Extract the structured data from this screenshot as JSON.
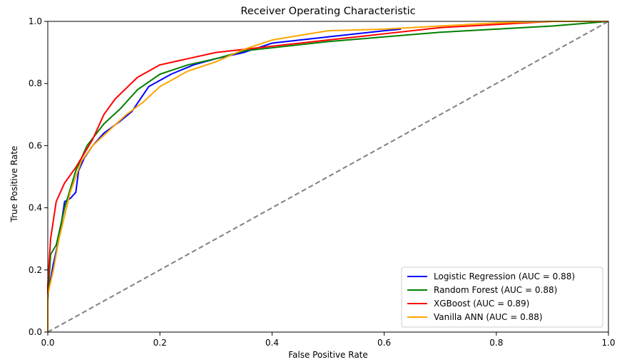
{
  "chart_data": {
    "type": "line",
    "title": "Receiver Operating Characteristic",
    "xlabel": "False Positive Rate",
    "ylabel": "True Positive Rate",
    "xlim": [
      0.0,
      1.0
    ],
    "ylim": [
      0.0,
      1.0
    ],
    "xticks": [
      "0.0",
      "0.2",
      "0.4",
      "0.6",
      "0.8",
      "1.0"
    ],
    "yticks": [
      "0.0",
      "0.2",
      "0.4",
      "0.6",
      "0.8",
      "1.0"
    ],
    "grid": false,
    "legend_position": "lower-right",
    "series": [
      {
        "name": "Logistic Regression (AUC = 0.88)",
        "color": "#0000ff",
        "x": [
          0.0,
          0.0,
          0.005,
          0.01,
          0.02,
          0.03,
          0.04,
          0.05,
          0.055,
          0.065,
          0.08,
          0.1,
          0.13,
          0.15,
          0.18,
          0.22,
          0.26,
          0.3,
          0.35,
          0.4,
          0.5,
          0.6,
          0.63
        ],
        "y": [
          0.0,
          0.12,
          0.17,
          0.22,
          0.3,
          0.42,
          0.43,
          0.45,
          0.52,
          0.56,
          0.6,
          0.64,
          0.68,
          0.71,
          0.79,
          0.83,
          0.86,
          0.88,
          0.9,
          0.93,
          0.95,
          0.97,
          0.975
        ]
      },
      {
        "name": "Random Forest (AUC = 0.88)",
        "color": "#008000",
        "x": [
          0.0,
          0.0,
          0.005,
          0.015,
          0.03,
          0.05,
          0.07,
          0.1,
          0.13,
          0.16,
          0.2,
          0.25,
          0.3,
          0.35,
          0.4,
          0.5,
          0.6,
          0.7,
          0.8,
          0.9,
          1.0
        ],
        "y": [
          0.0,
          0.1,
          0.25,
          0.28,
          0.4,
          0.52,
          0.6,
          0.67,
          0.72,
          0.78,
          0.83,
          0.86,
          0.88,
          0.905,
          0.915,
          0.935,
          0.95,
          0.965,
          0.975,
          0.985,
          1.0
        ]
      },
      {
        "name": "XGBoost (AUC = 0.89)",
        "color": "#ff0000",
        "x": [
          0.0,
          0.0,
          0.005,
          0.015,
          0.03,
          0.05,
          0.08,
          0.1,
          0.12,
          0.16,
          0.2,
          0.25,
          0.3,
          0.35,
          0.4,
          0.5,
          0.6,
          0.7,
          0.8,
          0.9,
          1.0
        ],
        "y": [
          0.0,
          0.15,
          0.3,
          0.42,
          0.48,
          0.53,
          0.62,
          0.7,
          0.75,
          0.82,
          0.86,
          0.88,
          0.9,
          0.91,
          0.92,
          0.94,
          0.96,
          0.98,
          0.99,
          1.0,
          1.0
        ]
      },
      {
        "name": "Vanilla ANN (AUC = 0.88)",
        "color": "#ffa500",
        "x": [
          0.0,
          0.0,
          0.01,
          0.02,
          0.04,
          0.06,
          0.08,
          0.11,
          0.14,
          0.17,
          0.2,
          0.25,
          0.3,
          0.35,
          0.4,
          0.5,
          0.6,
          0.7,
          0.8,
          0.9,
          1.0
        ],
        "y": [
          0.0,
          0.12,
          0.2,
          0.3,
          0.45,
          0.55,
          0.6,
          0.65,
          0.7,
          0.74,
          0.79,
          0.84,
          0.87,
          0.91,
          0.94,
          0.97,
          0.975,
          0.985,
          0.995,
          1.0,
          1.0
        ]
      },
      {
        "name": "",
        "color": "#808080",
        "dashed": true,
        "x": [
          0.0,
          1.0
        ],
        "y": [
          0.0,
          1.0
        ]
      }
    ]
  }
}
